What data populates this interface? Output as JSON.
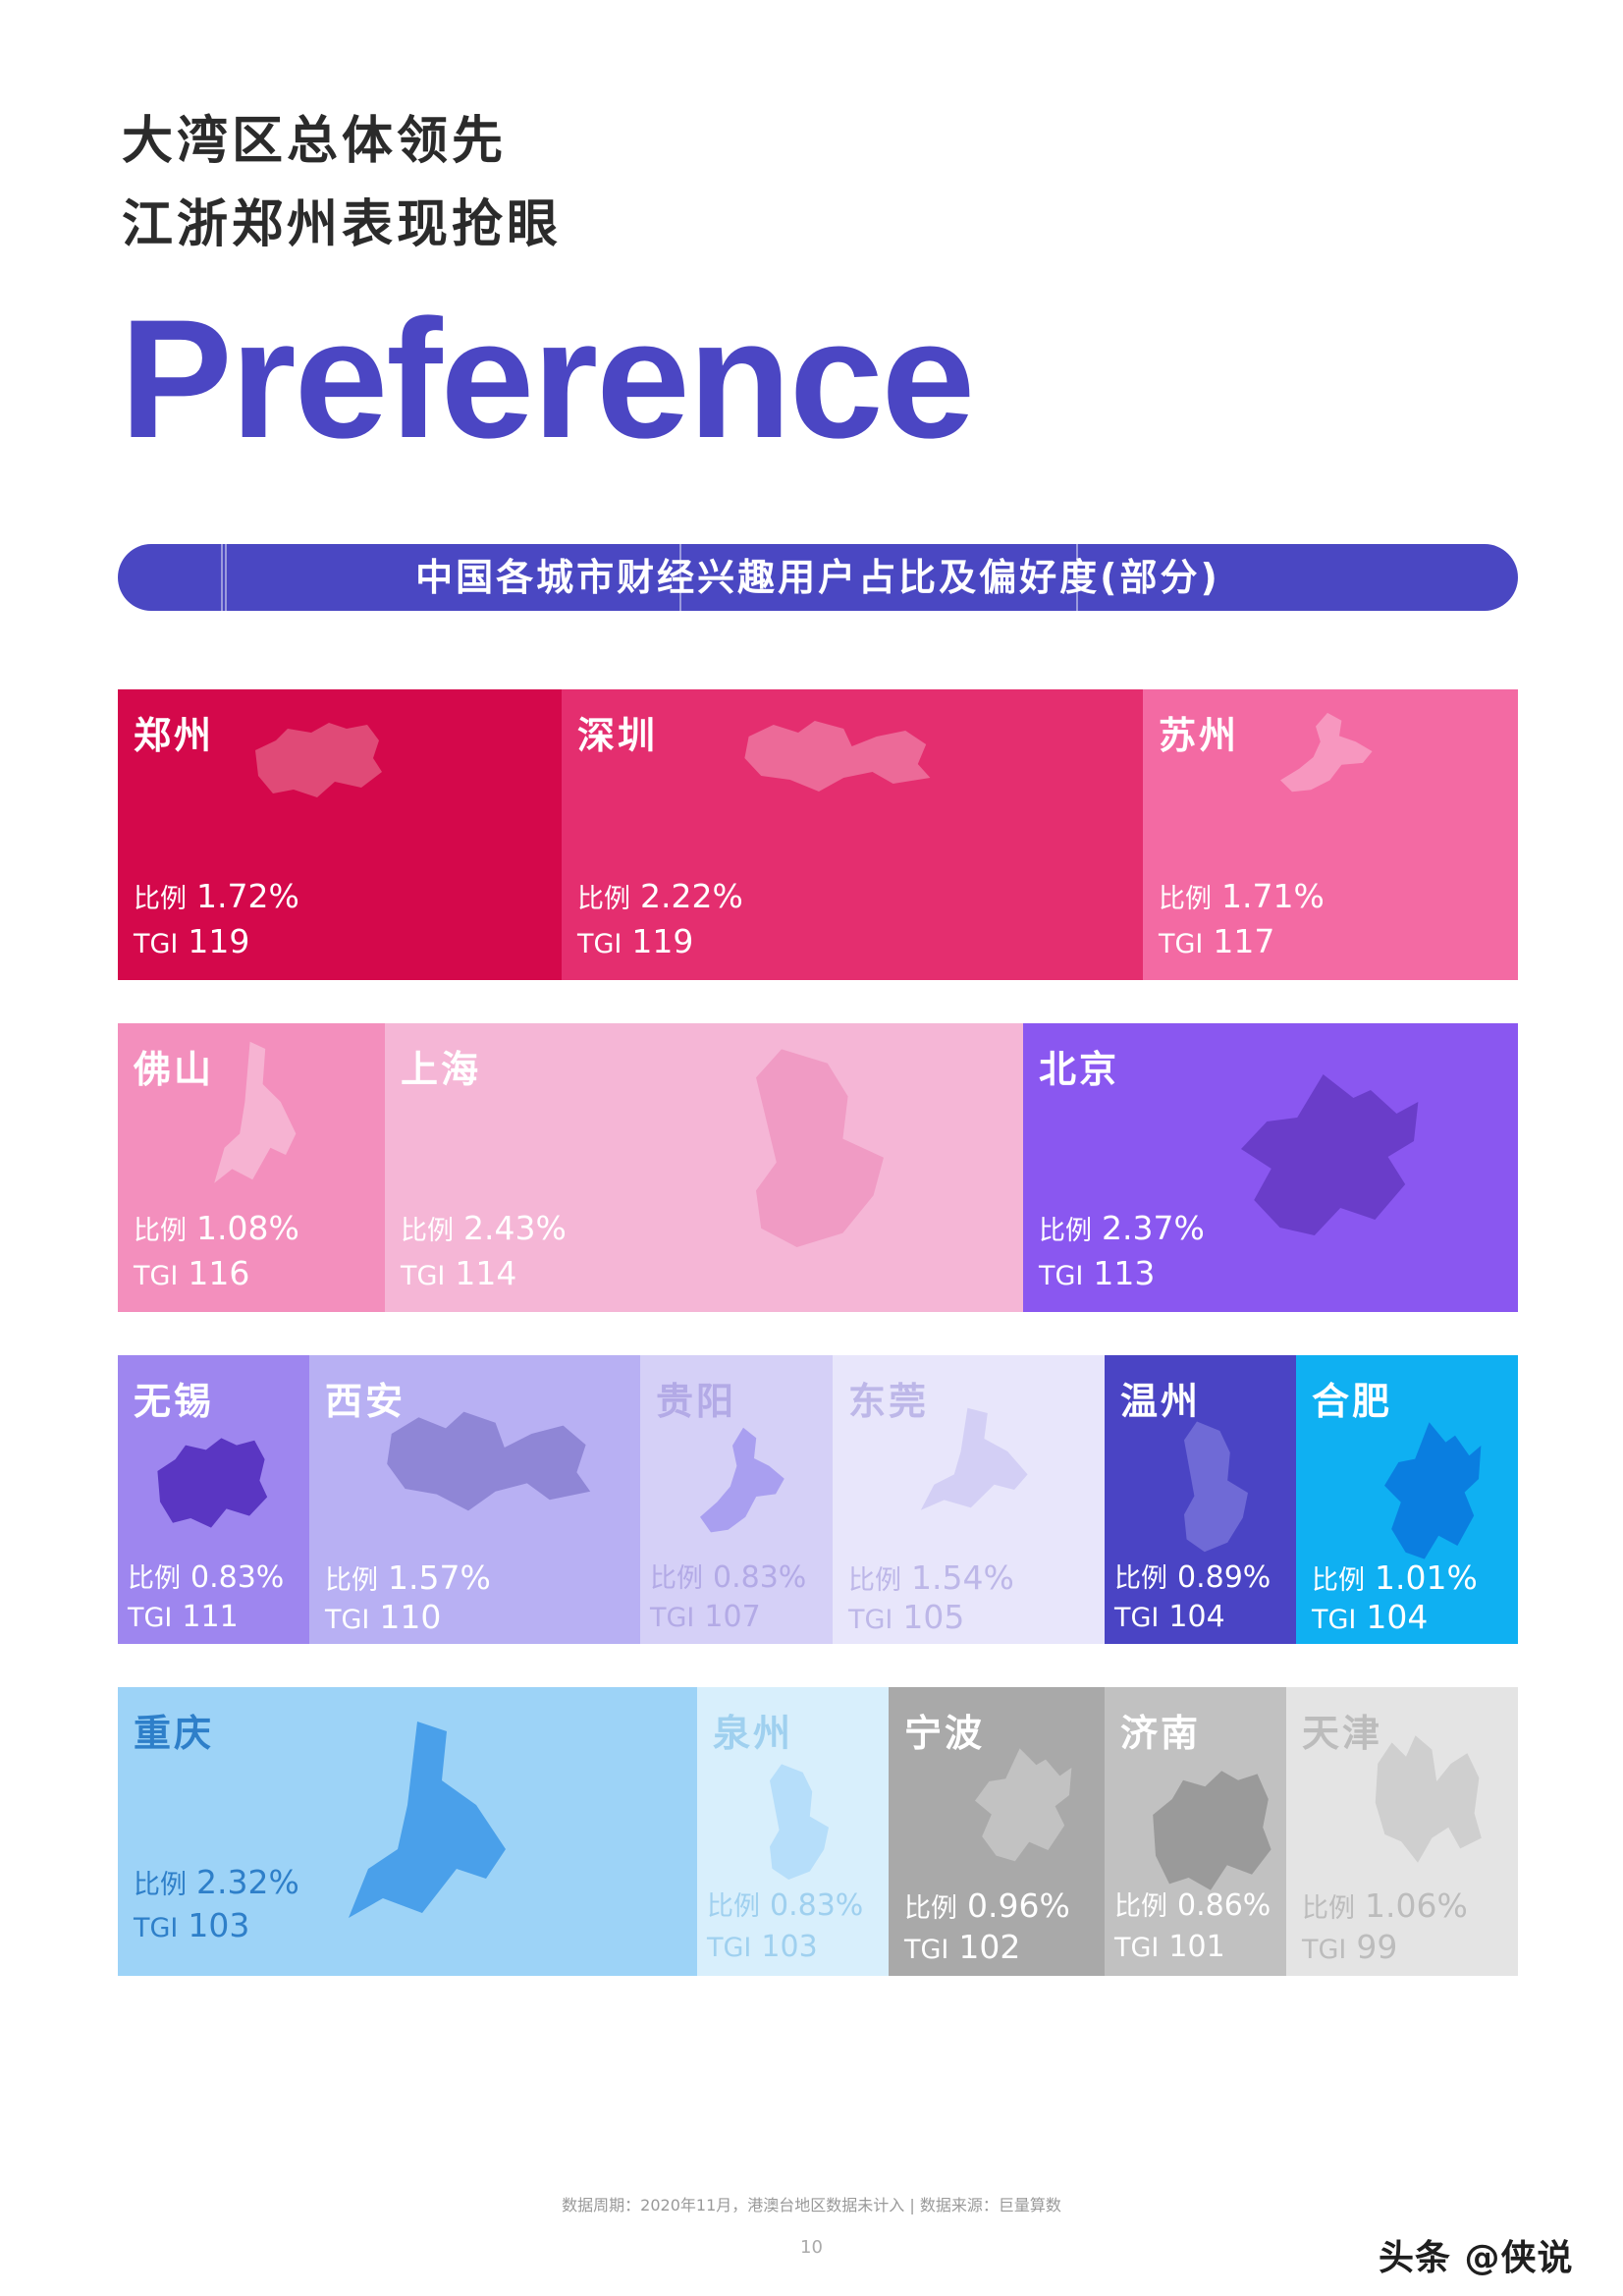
{
  "headline": {
    "line1": "大湾区总体领先",
    "line2": "江浙郑州表现抢眼"
  },
  "big_word": "Preference",
  "section_title": "中国各城市财经兴趣用户占比及偏好度(部分)",
  "labels": {
    "ratio": "比例",
    "tgi": "TGI"
  },
  "rows": [
    [
      {
        "city": "郑州",
        "ratio": "1.72%",
        "tgi": "119",
        "bg": "#d4084b",
        "text": "#ffffff",
        "map_color": "#e04a77"
      },
      {
        "city": "深圳",
        "ratio": "2.22%",
        "tgi": "119",
        "bg": "#e42e6f",
        "text": "#ffffff",
        "map_color": "#ec6a98"
      },
      {
        "city": "苏州",
        "ratio": "1.71%",
        "tgi": "117",
        "bg": "#f36aa3",
        "text": "#ffffff",
        "map_color": "#f797bf"
      }
    ],
    [
      {
        "city": "佛山",
        "ratio": "1.08%",
        "tgi": "116",
        "bg": "#f38fbd",
        "text": "#ffffff",
        "map_color": "#f6b3d2"
      },
      {
        "city": "上海",
        "ratio": "2.43%",
        "tgi": "114",
        "bg": "#f5b6d6",
        "text": "#ffffff",
        "map_color": "#f09bc4"
      },
      {
        "city": "北京",
        "ratio": "2.37%",
        "tgi": "113",
        "bg": "#8a57f0",
        "text": "#ffffff",
        "map_color": "#6a3dc9"
      }
    ],
    [
      {
        "city": "无锡",
        "ratio": "0.83%",
        "tgi": "111",
        "bg": "#9e86ef",
        "text": "#ffffff",
        "map_color": "#5a36c2"
      },
      {
        "city": "西安",
        "ratio": "1.57%",
        "tgi": "110",
        "bg": "#b8b0f3",
        "text": "#ffffff",
        "map_color": "#8f86d6"
      },
      {
        "city": "贵阳",
        "ratio": "0.83%",
        "tgi": "107",
        "bg": "#d5d0f7",
        "text": "#b3aae6",
        "map_color": "#a99ff0"
      },
      {
        "city": "东莞",
        "ratio": "1.54%",
        "tgi": "105",
        "bg": "#e8e6fb",
        "text": "#bdb7e8",
        "map_color": "#d3cff5"
      },
      {
        "city": "温州",
        "ratio": "0.89%",
        "tgi": "104",
        "bg": "#4a44c4",
        "text": "#ffffff",
        "map_color": "#6f6ad6"
      },
      {
        "city": "合肥",
        "ratio": "1.01%",
        "tgi": "104",
        "bg": "#0fb0f2",
        "text": "#ffffff",
        "map_color": "#0a7ee0"
      }
    ],
    [
      {
        "city": "重庆",
        "ratio": "2.32%",
        "tgi": "103",
        "bg": "#9dd3f7",
        "text": "#2e7fc9",
        "map_color": "#4aa0ea"
      },
      {
        "city": "泉州",
        "ratio": "0.83%",
        "tgi": "103",
        "bg": "#d8effc",
        "text": "#9fd0ef",
        "map_color": "#b6defa"
      },
      {
        "city": "宁波",
        "ratio": "0.96%",
        "tgi": "102",
        "bg": "#a9a9a9",
        "text": "#ffffff",
        "map_color": "#c2c2c2"
      },
      {
        "city": "济南",
        "ratio": "0.86%",
        "tgi": "101",
        "bg": "#c1c1c1",
        "text": "#ffffff",
        "map_color": "#9a9a9a"
      },
      {
        "city": "天津",
        "ratio": "1.06%",
        "tgi": "99",
        "bg": "#e4e4e4",
        "text": "#bcbcbc",
        "map_color": "#cfcfcf"
      }
    ]
  ],
  "footer": {
    "note": "数据周期：2020年11月，港澳台地区数据未计入 | 数据来源：巨量算数",
    "page": "10"
  },
  "watermark": "头条 @侠说"
}
